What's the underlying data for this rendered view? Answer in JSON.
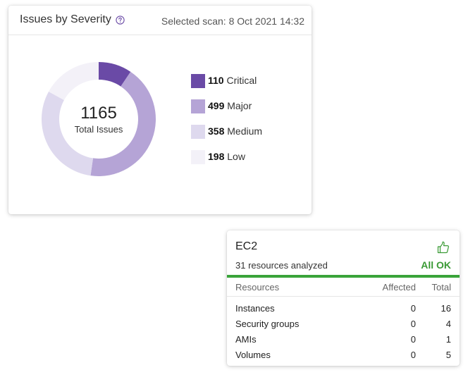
{
  "severity_card": {
    "title": "Issues by Severity",
    "help_icon": "question-circle-icon",
    "scan_label": "Selected scan: 8 Oct 2021 14:32",
    "total": "1165",
    "total_caption": "Total Issues",
    "legend": [
      {
        "count": "110",
        "label": "Critical",
        "color": "#6a4aa6"
      },
      {
        "count": "499",
        "label": "Major",
        "color": "#b5a4d6"
      },
      {
        "count": "358",
        "label": "Medium",
        "color": "#ded9ee"
      },
      {
        "count": "198",
        "label": "Low",
        "color": "#f3f1f8"
      }
    ]
  },
  "chart_data": {
    "type": "pie",
    "categories": [
      "Critical",
      "Major",
      "Medium",
      "Low"
    ],
    "values": [
      110,
      499,
      358,
      198
    ],
    "colors": [
      "#6a4aa6",
      "#b5a4d6",
      "#ded9ee",
      "#f3f1f8"
    ],
    "title": "Issues by Severity",
    "center_value": 1165,
    "center_label": "Total Issues",
    "legend_position": "right"
  },
  "ec2_card": {
    "title": "EC2",
    "status_icon": "thumbs-up-icon",
    "subtitle": "31 resources analyzed",
    "status": "All OK",
    "status_color": "#3a9a35",
    "headers": {
      "resource": "Resources",
      "affected": "Affected",
      "total": "Total"
    },
    "rows": [
      {
        "name": "Instances",
        "affected": "0",
        "total": "16"
      },
      {
        "name": "Security groups",
        "affected": "0",
        "total": "4"
      },
      {
        "name": "AMIs",
        "affected": "0",
        "total": "1"
      },
      {
        "name": "Volumes",
        "affected": "0",
        "total": "5"
      }
    ]
  }
}
